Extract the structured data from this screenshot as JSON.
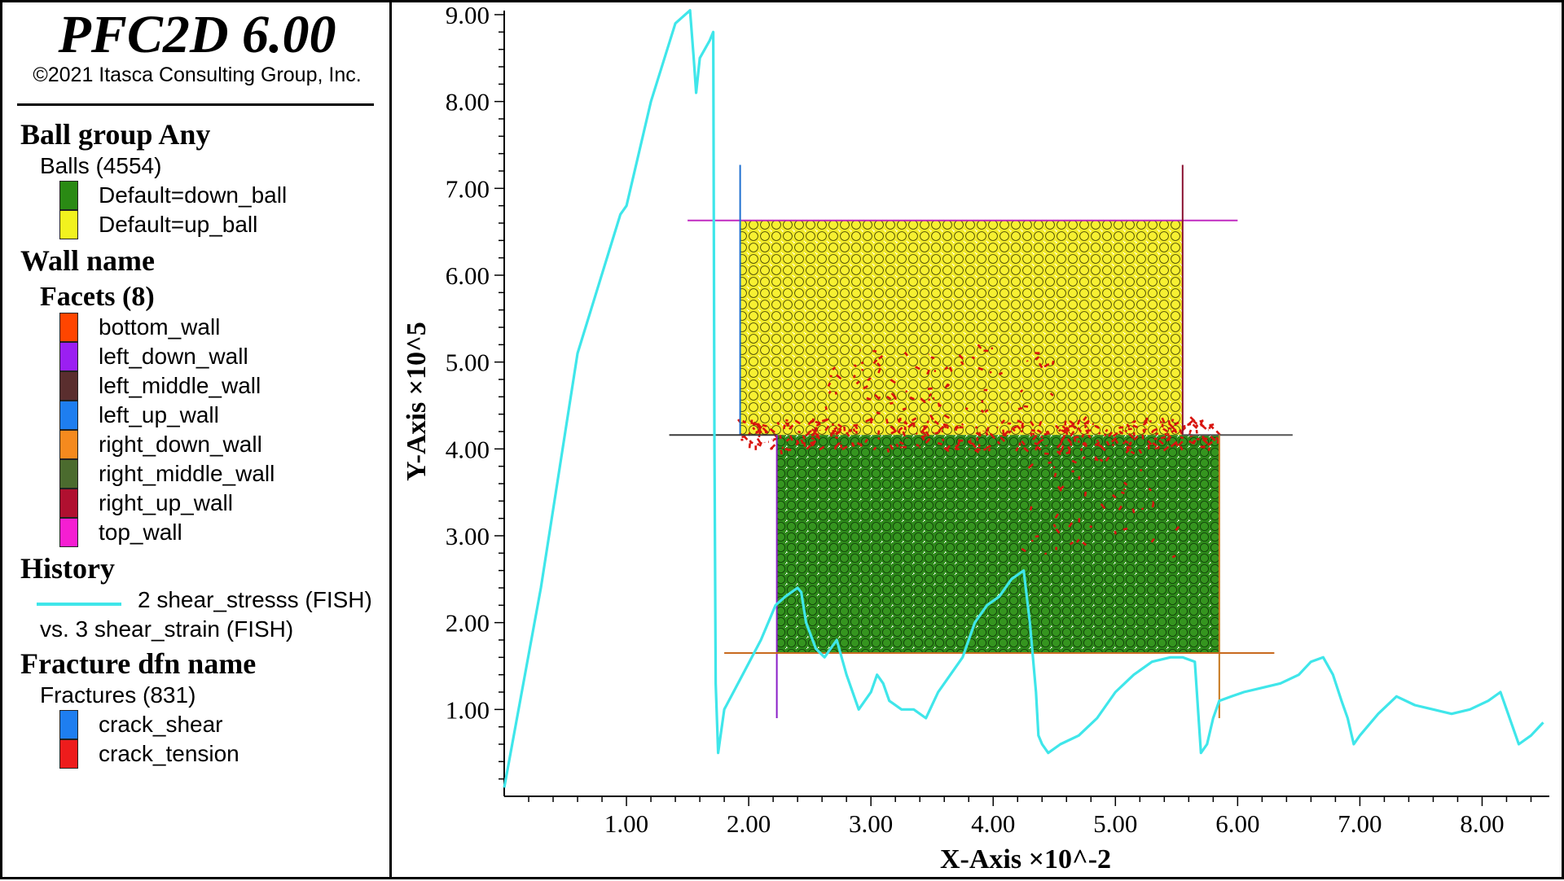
{
  "app": {
    "title": "PFC2D 6.00",
    "copyright": "©2021 Itasca Consulting Group, Inc."
  },
  "legend": {
    "ball_group_heading": "Ball group Any",
    "balls_label": "Balls (4554)",
    "ball_items": [
      {
        "label": "Default=down_ball",
        "color": "#2a8a14"
      },
      {
        "label": "Default=up_ball",
        "color": "#f2f21e"
      }
    ],
    "wall_heading": "Wall name",
    "facets_label": "Facets (8)",
    "wall_items": [
      {
        "label": "bottom_wall",
        "color": "#ff4500"
      },
      {
        "label": "left_down_wall",
        "color": "#9b1ff2"
      },
      {
        "label": "left_middle_wall",
        "color": "#5a2e2e"
      },
      {
        "label": "left_up_wall",
        "color": "#1e7ef0"
      },
      {
        "label": "right_down_wall",
        "color": "#f58a1e"
      },
      {
        "label": "right_middle_wall",
        "color": "#4b6b2e"
      },
      {
        "label": "right_up_wall",
        "color": "#b01030"
      },
      {
        "label": "top_wall",
        "color": "#f51ed2"
      }
    ],
    "history_heading": "History",
    "history_series": "2 shear_stresss (FISH)",
    "history_vs": "vs. 3 shear_strain (FISH)",
    "history_color": "#3fe6ea",
    "fracture_heading": "Fracture dfn name",
    "fractures_label": "Fractures (831)",
    "fracture_items": [
      {
        "label": "crack_shear",
        "color": "#1e7ef0"
      },
      {
        "label": "crack_tension",
        "color": "#ee1c1c"
      }
    ]
  },
  "chart_data": {
    "type": "line",
    "xlabel": "X-Axis ×10^-2",
    "ylabel": "Y-Axis ×10^5",
    "xlim": [
      0,
      8.55
    ],
    "ylim": [
      0,
      9.0
    ],
    "xticks": [
      "1.00",
      "2.00",
      "3.00",
      "4.00",
      "5.00",
      "6.00",
      "7.00",
      "8.00"
    ],
    "yticks": [
      "1.00",
      "2.00",
      "3.00",
      "4.00",
      "5.00",
      "6.00",
      "7.00",
      "8.00",
      "9.00"
    ],
    "series": [
      {
        "name": "2 shear_stresss (FISH)",
        "color": "#3fe6ea",
        "x": [
          0.0,
          0.3,
          0.6,
          0.95,
          1.0,
          1.2,
          1.4,
          1.52,
          1.55,
          1.57,
          1.6,
          1.68,
          1.71,
          1.72,
          1.73,
          1.75,
          1.8,
          1.95,
          2.1,
          2.22,
          2.3,
          2.4,
          2.43,
          2.47,
          2.55,
          2.62,
          2.72,
          2.8,
          2.9,
          3.0,
          3.05,
          3.1,
          3.15,
          3.25,
          3.35,
          3.45,
          3.55,
          3.65,
          3.75,
          3.85,
          3.95,
          4.05,
          4.15,
          4.25,
          4.3,
          4.35,
          4.37,
          4.4,
          4.45,
          4.55,
          4.7,
          4.85,
          5.0,
          5.15,
          5.3,
          5.45,
          5.55,
          5.65,
          5.7,
          5.75,
          5.8,
          5.85,
          5.95,
          6.05,
          6.2,
          6.35,
          6.5,
          6.6,
          6.7,
          6.78,
          6.85,
          6.9,
          6.95,
          7.0,
          7.15,
          7.3,
          7.45,
          7.6,
          7.75,
          7.9,
          8.05,
          8.15,
          8.2,
          8.25,
          8.3,
          8.4,
          8.5
        ],
        "y": [
          0.1,
          2.4,
          5.1,
          6.7,
          6.8,
          8.0,
          8.9,
          9.05,
          8.5,
          8.1,
          8.5,
          8.7,
          8.8,
          4.0,
          1.3,
          0.5,
          1.0,
          1.4,
          1.8,
          2.2,
          2.3,
          2.4,
          2.35,
          2.0,
          1.7,
          1.6,
          1.8,
          1.4,
          1.0,
          1.2,
          1.4,
          1.3,
          1.1,
          1.0,
          1.0,
          0.9,
          1.2,
          1.4,
          1.6,
          2.0,
          2.2,
          2.3,
          2.5,
          2.6,
          2.0,
          1.2,
          0.7,
          0.6,
          0.5,
          0.6,
          0.7,
          0.9,
          1.2,
          1.4,
          1.55,
          1.6,
          1.6,
          1.55,
          0.5,
          0.6,
          0.9,
          1.1,
          1.15,
          1.2,
          1.25,
          1.3,
          1.4,
          1.55,
          1.6,
          1.4,
          1.1,
          0.9,
          0.6,
          0.7,
          0.95,
          1.15,
          1.05,
          1.0,
          0.95,
          1.0,
          1.1,
          1.2,
          1.0,
          0.8,
          0.6,
          0.7,
          0.85
        ]
      }
    ],
    "specimen": {
      "up_ball_region": {
        "x": [
          1.93,
          5.55
        ],
        "y": [
          4.16,
          6.63
        ]
      },
      "down_ball_region": {
        "x": [
          2.23,
          5.85
        ],
        "y": [
          1.65,
          4.16
        ]
      },
      "walls": [
        {
          "name": "top_wall",
          "x": [
            1.5,
            6.0
          ],
          "y": [
            6.63,
            6.63
          ]
        },
        {
          "name": "left_up_wall",
          "x": [
            1.93,
            1.93
          ],
          "y": [
            4.16,
            7.27
          ]
        },
        {
          "name": "right_up_wall",
          "x": [
            5.55,
            5.55
          ],
          "y": [
            4.16,
            7.27
          ]
        },
        {
          "name": "left_middle_wall",
          "x": [
            1.35,
            2.23
          ],
          "y": [
            4.16,
            4.16
          ]
        },
        {
          "name": "right_middle_wall",
          "x": [
            5.55,
            6.45
          ],
          "y": [
            4.16,
            4.16
          ]
        },
        {
          "name": "left_down_wall",
          "x": [
            2.23,
            2.23
          ],
          "y": [
            0.9,
            4.16
          ]
        },
        {
          "name": "right_down_wall",
          "x": [
            5.85,
            5.85
          ],
          "y": [
            0.9,
            4.16
          ]
        },
        {
          "name": "bottom_wall",
          "x": [
            1.8,
            6.3
          ],
          "y": [
            1.65,
            1.65
          ]
        }
      ]
    }
  }
}
